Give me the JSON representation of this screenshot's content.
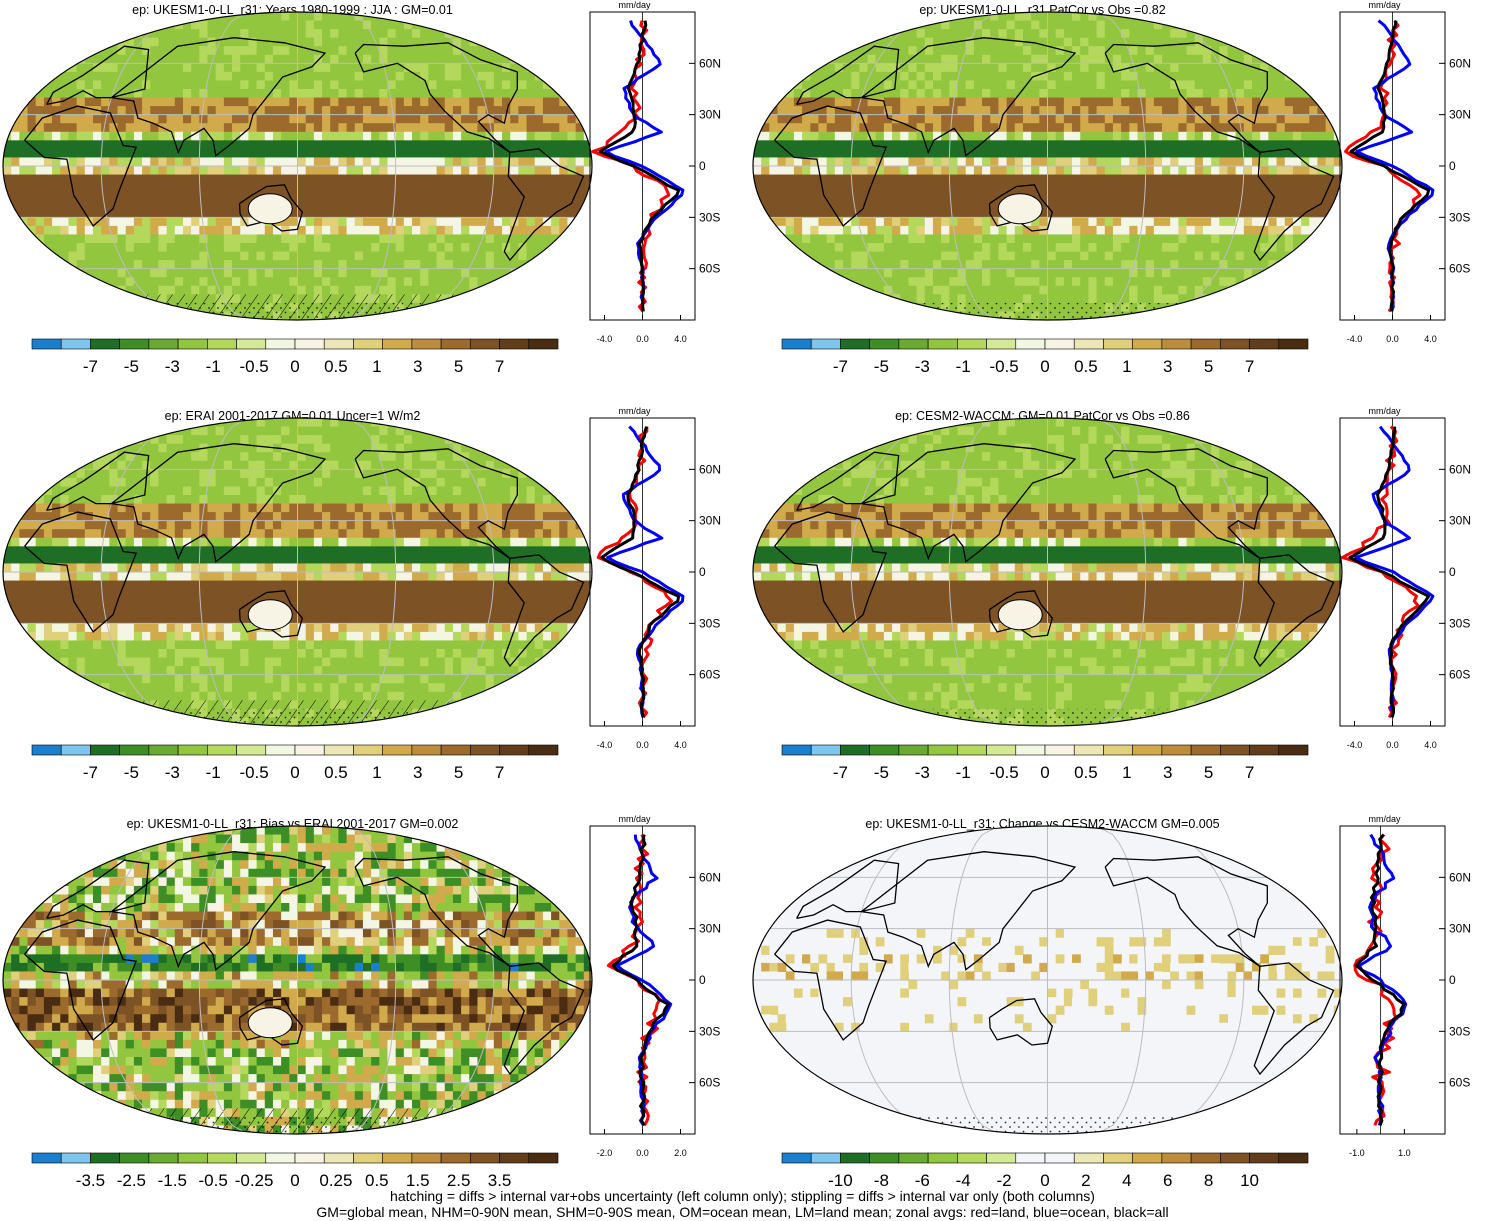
{
  "colors": {
    "red": "#ff0000",
    "blue": "#0000ff",
    "black": "#000000",
    "grid": "#bdbdbd",
    "coast": "#000000"
  },
  "palettes": {
    "main": [
      "#1b7fd0",
      "#7fc6ef",
      "#1f6e25",
      "#3e8e26",
      "#6aa932",
      "#93c63f",
      "#b4d85c",
      "#d3e995",
      "#f2f7e3",
      "#f7f4e6",
      "#ece7b6",
      "#e1d07b",
      "#d1ab4b",
      "#bd8d3d",
      "#9b6a2c",
      "#7d5225",
      "#623d1b",
      "#4a2c12"
    ],
    "change": [
      "#1b7fd0",
      "#7fc6ef",
      "#1f6e25",
      "#3e8e26",
      "#6aa932",
      "#93c63f",
      "#b4d85c",
      "#d3e995",
      "#f4f5f9",
      "#f4f5f9",
      "#ece7b6",
      "#e1d07b",
      "#d1ab4b",
      "#bd8d3d",
      "#9b6a2c",
      "#7d5225",
      "#623d1b",
      "#4a2c12"
    ]
  },
  "panels": [
    {
      "title": "ep: UKESM1-0-LL_r31: Years 1980-1999 : JJA : GM=0.01",
      "colorbar_labels": [
        "-7",
        "-5",
        "-3",
        "-1",
        "-0.5",
        "0",
        "0.5",
        "1",
        "3",
        "5",
        "7"
      ],
      "profile_xticks": [
        "-4.0",
        "0.0",
        "4.0"
      ],
      "palette": "main",
      "style": "clim",
      "hatch": true
    },
    {
      "title": "ep: UKESM1-0-LL_r31 PatCor vs Obs =0.82",
      "colorbar_labels": [
        "-7",
        "-5",
        "-3",
        "-1",
        "-0.5",
        "0",
        "0.5",
        "1",
        "3",
        "5",
        "7"
      ],
      "profile_xticks": [
        "-4.0",
        "0.0",
        "4.0"
      ],
      "palette": "main",
      "style": "clim",
      "hatch": false
    },
    {
      "title": "ep: ERAI 2001-2017 GM=0.01 Uncer=1 W/m2",
      "colorbar_labels": [
        "-7",
        "-5",
        "-3",
        "-1",
        "-0.5",
        "0",
        "0.5",
        "1",
        "3",
        "5",
        "7"
      ],
      "profile_xticks": [
        "-4.0",
        "0.0",
        "4.0"
      ],
      "palette": "main",
      "style": "clim",
      "hatch": true
    },
    {
      "title": "ep: CESM2-WACCM: GM=0.01 PatCor vs Obs =0.86",
      "colorbar_labels": [
        "-7",
        "-5",
        "-3",
        "-1",
        "-0.5",
        "0",
        "0.5",
        "1",
        "3",
        "5",
        "7"
      ],
      "profile_xticks": [
        "-4.0",
        "0.0",
        "4.0"
      ],
      "palette": "main",
      "style": "clim",
      "hatch": false
    },
    {
      "title": "ep: UKESM1-0-LL_r31: Bias vs ERAI 2001-2017 GM=0.002",
      "colorbar_labels": [
        "-3.5",
        "-2.5",
        "-1.5",
        "-0.5",
        "-0.25",
        "0",
        "0.25",
        "0.5",
        "1.5",
        "2.5",
        "3.5"
      ],
      "profile_xticks": [
        "-2.0",
        "0.0",
        "2.0"
      ],
      "palette": "main",
      "style": "bias",
      "hatch": true
    },
    {
      "title": "ep: UKESM1-0-LL_r31: Change vs CESM2-WACCM GM=0.005",
      "colorbar_labels": [
        "-10",
        "-8",
        "-6",
        "-4",
        "-2",
        "0",
        "2",
        "4",
        "6",
        "8",
        "10"
      ],
      "profile_xticks": [
        "-1.0",
        "1.0"
      ],
      "palette": "change",
      "style": "change",
      "hatch": false
    }
  ],
  "profile": {
    "unit": "mm/day",
    "ylabels": [
      "60N",
      "30N",
      "0",
      "30S",
      "60S"
    ]
  },
  "chart_data": [
    {
      "type": "heatmap",
      "title": "ep: UKESM1-0-LL_r31: Years 1980-1999 : JJA : GM=0.01",
      "colorbar": [
        -7,
        -5,
        -3,
        -1,
        -0.5,
        0,
        0.5,
        1,
        3,
        5,
        7
      ],
      "zonal_profile": {
        "xlabel": "mm/day",
        "xlim": [
          -5,
          5
        ],
        "lat": [
          75,
          60,
          45,
          30,
          20,
          8,
          0,
          -15,
          -30,
          -45,
          -60,
          -75
        ],
        "series": [
          {
            "values": [
              0,
              -0.3,
              -1,
              -0.5,
              -2,
              -5,
              -1,
              3,
              1,
              0.3,
              0,
              0
            ]
          },
          {
            "values": [
              0,
              2,
              -2,
              -1,
              2,
              -4,
              0,
              4.5,
              1.5,
              -0.5,
              0,
              0
            ]
          },
          {
            "values": [
              0,
              -0.5,
              -1.5,
              -0.8,
              -1,
              -4.5,
              -1,
              4,
              1,
              -0.3,
              0,
              0
            ]
          }
        ]
      }
    },
    {
      "type": "heatmap",
      "title": "ep: UKESM1-0-LL_r31 PatCor vs Obs =0.82",
      "colorbar": [
        -7,
        -5,
        -3,
        -1,
        -0.5,
        0,
        0.5,
        1,
        3,
        5,
        7
      ],
      "zonal_profile": {
        "xlabel": "mm/day",
        "xlim": [
          -5,
          5
        ]
      }
    },
    {
      "type": "heatmap",
      "title": "ep: ERAI 2001-2017 GM=0.01 Uncer=1 W/m2",
      "colorbar": [
        -7,
        -5,
        -3,
        -1,
        -0.5,
        0,
        0.5,
        1,
        3,
        5,
        7
      ],
      "zonal_profile": {
        "xlabel": "mm/day",
        "xlim": [
          -5,
          5
        ]
      }
    },
    {
      "type": "heatmap",
      "title": "ep: CESM2-WACCM: GM=0.01 PatCor vs Obs =0.86",
      "colorbar": [
        -7,
        -5,
        -3,
        -1,
        -0.5,
        0,
        0.5,
        1,
        3,
        5,
        7
      ],
      "zonal_profile": {
        "xlabel": "mm/day",
        "xlim": [
          -5,
          5
        ]
      }
    },
    {
      "type": "heatmap",
      "title": "ep: UKESM1-0-LL_r31: Bias vs ERAI 2001-2017 GM=0.002",
      "colorbar": [
        -3.5,
        -2.5,
        -1.5,
        -0.5,
        -0.25,
        0,
        0.25,
        0.5,
        1.5,
        2.5,
        3.5
      ],
      "zonal_profile": {
        "xlabel": "mm/day",
        "xlim": [
          -2.5,
          2.5
        ]
      }
    },
    {
      "type": "heatmap",
      "title": "ep: UKESM1-0-LL_r31: Change vs CESM2-WACCM GM=0.005",
      "colorbar": [
        -10,
        -8,
        -6,
        -4,
        -2,
        0,
        2,
        4,
        6,
        8,
        10
      ],
      "zonal_profile": {
        "xlabel": "mm/day",
        "xlim": [
          -1.5,
          2.5
        ]
      }
    }
  ],
  "footer": {
    "line1": "hatching = diffs > internal var+obs uncertainty (left column only); stippling = diffs > internal var only (both columns)",
    "line2": "GM=global mean, NHM=0-90N mean, SHM=0-90S mean, OM=ocean mean, LM=land mean; zonal avgs: red=land, blue=ocean, black=all"
  }
}
